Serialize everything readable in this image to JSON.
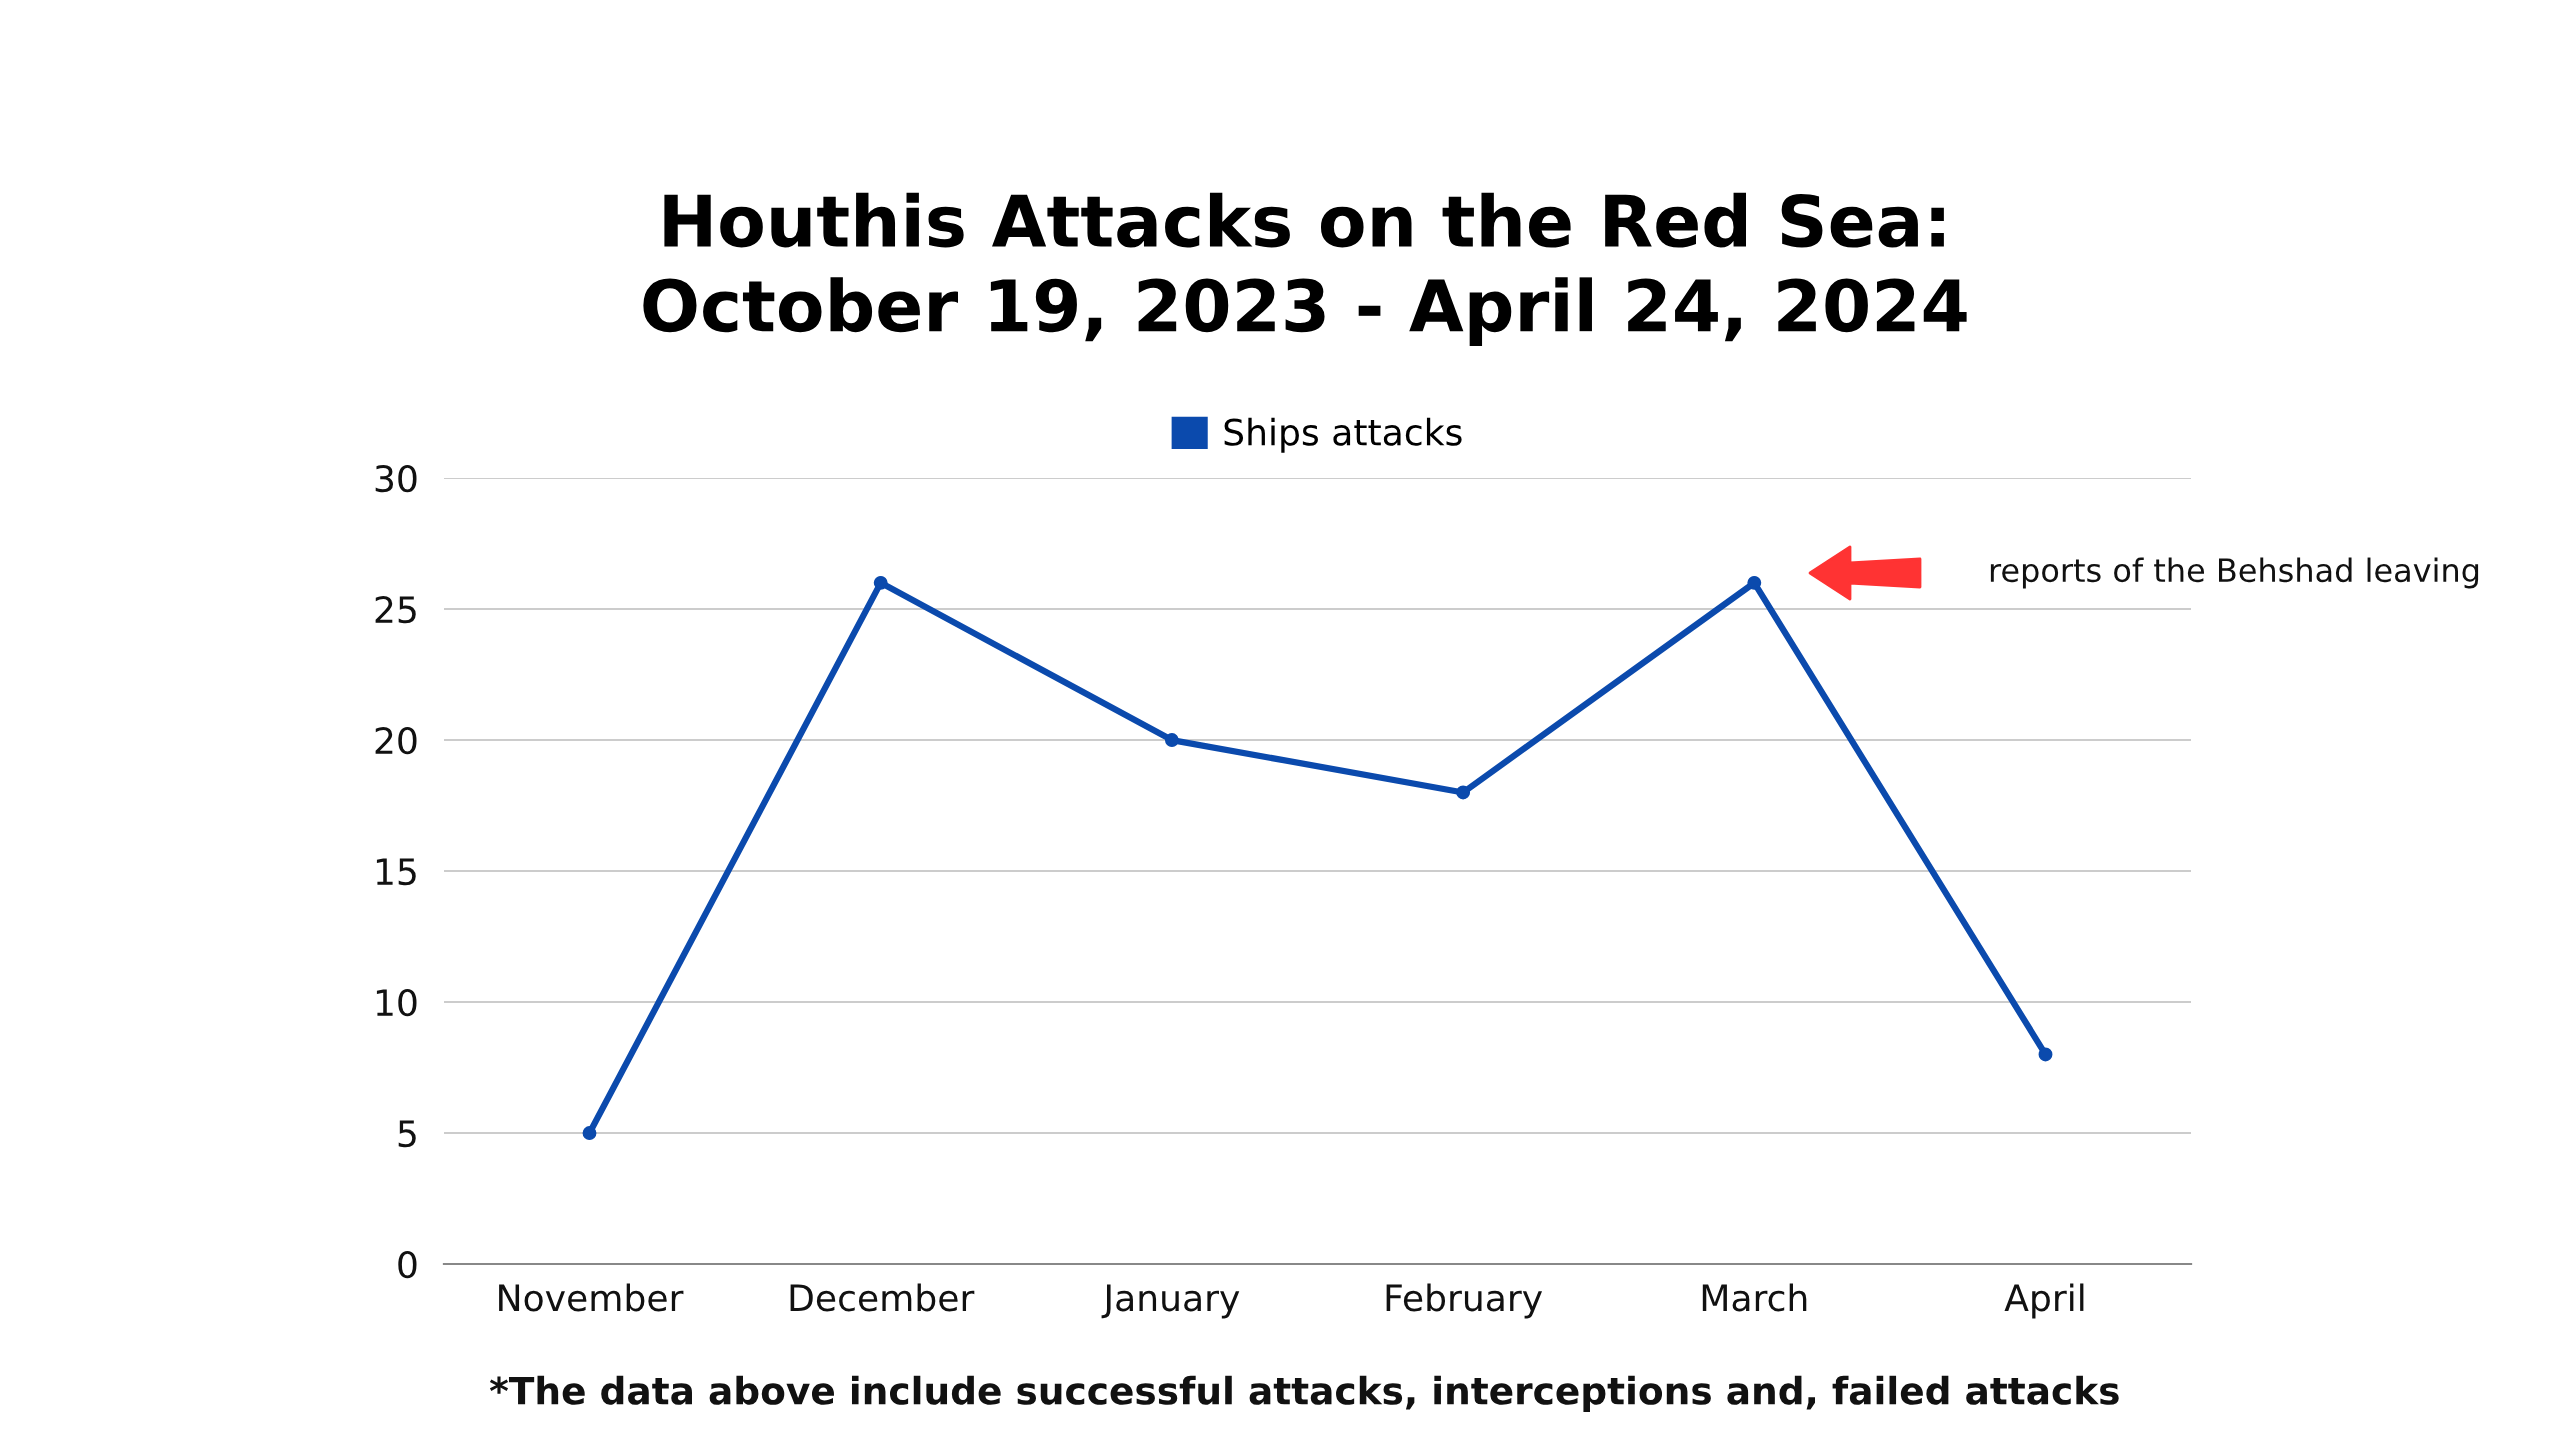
{
  "chart_data": {
    "type": "line",
    "title": "Houthis Attacks on the Red Sea:\nOctober 19, 2023 - April 24, 2024",
    "categories": [
      "November",
      "December",
      "January",
      "February",
      "March",
      "April"
    ],
    "series": [
      {
        "name": "Ships attacks",
        "color": "#0b4aad",
        "values": [
          5,
          26,
          20,
          18,
          26,
          8
        ]
      }
    ],
    "ylim": [
      0,
      30
    ],
    "yticks": [
      0,
      5,
      10,
      15,
      20,
      25,
      30
    ],
    "grid": "y",
    "legend": "top",
    "marker": "circle",
    "line_style": "solid",
    "annotations": [
      "reports of the Behshad leaving",
      "*The data above include successful attacks, interceptions and, failed attacks"
    ]
  }
}
